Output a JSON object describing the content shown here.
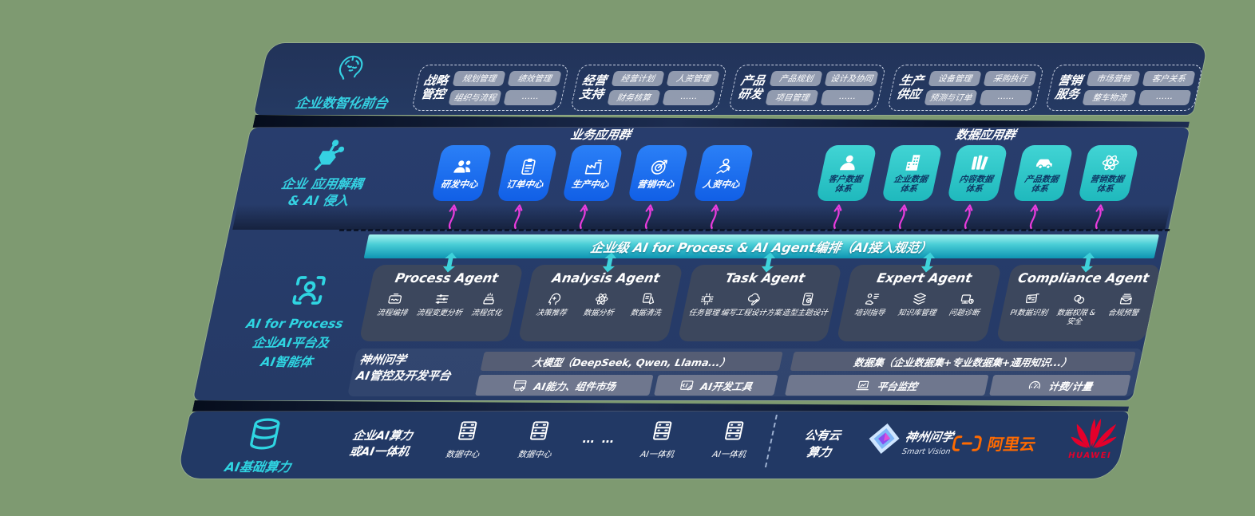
{
  "front_office": {
    "label": "企业数智化前台",
    "groups": [
      {
        "line1": "战略",
        "line2": "管控",
        "items": [
          "规划管理",
          "绩效管理",
          "组织与流程",
          "……"
        ]
      },
      {
        "line1": "经营",
        "line2": "支持",
        "items": [
          "经营计划",
          "人资管理",
          "财务核算",
          "……"
        ]
      },
      {
        "line1": "产品",
        "line2": "研发",
        "items": [
          "产品规划",
          "设计及协同",
          "项目管理",
          "……"
        ]
      },
      {
        "line1": "生产",
        "line2": "供应",
        "items": [
          "设备管理",
          "采购执行",
          "预测与订单",
          "……"
        ]
      },
      {
        "line1": "营销",
        "line2": "服务",
        "items": [
          "市场营销",
          "客户关系",
          "整车物流",
          "……"
        ]
      }
    ]
  },
  "decouple_layer": {
    "label_line1": "企业 应用解耦",
    "label_line2": "& AI 侵入",
    "business_apps": {
      "title": "业务应用群",
      "cards": [
        "研发中心",
        "订单中心",
        "生产中心",
        "营销中心",
        "人资中心"
      ]
    },
    "data_apps": {
      "title": "数据应用群",
      "cards": [
        {
          "line1": "客户数据",
          "line2": "体系"
        },
        {
          "line1": "企业数据",
          "line2": "体系"
        },
        {
          "line1": "内容数据",
          "line2": "体系"
        },
        {
          "line1": "产品数据",
          "line2": "体系"
        },
        {
          "line1": "营销数据",
          "line2": "体系"
        }
      ]
    }
  },
  "orchestration_band": {
    "label": "企业级 AI for Process & AI Agent编排（AI接入规范）"
  },
  "ai_platform_layer": {
    "label_line1": "AI for Process",
    "label_line2": "企业AI平台及",
    "label_line3": "AI智能体",
    "agents": [
      {
        "title": "Process Agent",
        "items": [
          "流程编排",
          "流程变更分析",
          "流程优化"
        ]
      },
      {
        "title": "Analysis Agent",
        "items": [
          "决策推荐",
          "数据分析",
          "数据清洗"
        ]
      },
      {
        "title": "Task Agent",
        "items": [
          "任务管理",
          "编写工程设计方案",
          "造型主题设计"
        ]
      },
      {
        "title": "Expert Agent",
        "items": [
          "培训指导",
          "知识库管理",
          "问题诊断"
        ]
      },
      {
        "title": "Compliance Agent",
        "items": [
          "PI数据识别",
          "数据权限 & 安全",
          "合规预警"
        ]
      }
    ],
    "platform": {
      "label_line1": "神州问学",
      "label_line2": "AI管控及开发平台",
      "model_bar": "大模型（DeepSeek, Qwen, Llama...）",
      "capability_bar": "AI能力、组件市场",
      "devtools_bar": "AI开发工具",
      "dataset_bar": "数据集（企业数据集+专业数据集+通用知识...）",
      "monitor_bar": "平台监控",
      "billing_bar": "计费/计量"
    }
  },
  "compute_layer": {
    "label": "AI基础算力",
    "compute_line1": "企业AI算力",
    "compute_line2": "或AI一体机",
    "nodes": [
      {
        "label": "数据中心"
      },
      {
        "label": "数据中心"
      },
      {
        "label": "AI一体机"
      },
      {
        "label": "AI一体机"
      }
    ],
    "ellipsis": "… …",
    "cloud_line1": "公有云",
    "cloud_line2": "算力",
    "vendors": {
      "smartvision_name": "神州问学",
      "smartvision_sub": "Smart Vision",
      "aliyun": "阿里云",
      "huawei": "HUAWEI"
    }
  },
  "colors": {
    "background": "#7E9A71",
    "navy": "#263A68",
    "blue_card": "#1B6DF2",
    "teal_card": "#2CC7C9",
    "accent_teal": "#35D1E2",
    "magenta_arrow": "#E83CDC",
    "band_teal": "#2FB9C8",
    "aliyun_orange": "#FF6A00",
    "huawei_red": "#E4002B"
  }
}
